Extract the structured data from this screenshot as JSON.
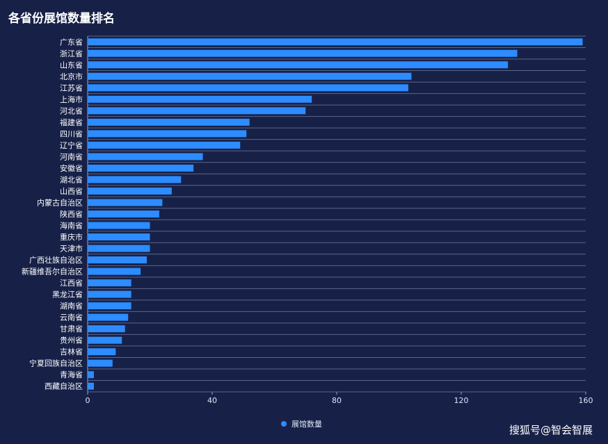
{
  "title": "各省份展馆数量排名",
  "watermark": "搜狐号@智会智展",
  "colors": {
    "background": "#172148",
    "bar": "#2d8cff",
    "grid": "#5d6685",
    "text": "#dfe6f5"
  },
  "chart_data": {
    "type": "bar",
    "orientation": "horizontal",
    "title": "各省份展馆数量排名",
    "legend": {
      "entries": [
        "展馆数量"
      ],
      "position": "bottom-center"
    },
    "xlim": [
      0,
      160
    ],
    "xticks": [
      0,
      40,
      80,
      120,
      160
    ],
    "categories": [
      "广东省",
      "浙江省",
      "山东省",
      "北京市",
      "江苏省",
      "上海市",
      "河北省",
      "福建省",
      "四川省",
      "辽宁省",
      "河南省",
      "安徽省",
      "湖北省",
      "山西省",
      "内蒙古自治区",
      "陕西省",
      "海南省",
      "重庆市",
      "天津市",
      "广西壮族自治区",
      "新疆维吾尔自治区",
      "江西省",
      "黑龙江省",
      "湖南省",
      "云南省",
      "甘肃省",
      "贵州省",
      "吉林省",
      "宁夏回族自治区",
      "青海省",
      "西藏自治区"
    ],
    "series": [
      {
        "name": "展馆数量",
        "values": [
          159,
          138,
          135,
          104,
          103,
          72,
          70,
          52,
          51,
          49,
          37,
          34,
          30,
          27,
          24,
          23,
          20,
          20,
          20,
          19,
          17,
          14,
          14,
          14,
          13,
          12,
          11,
          9,
          8,
          2,
          2
        ]
      }
    ]
  }
}
